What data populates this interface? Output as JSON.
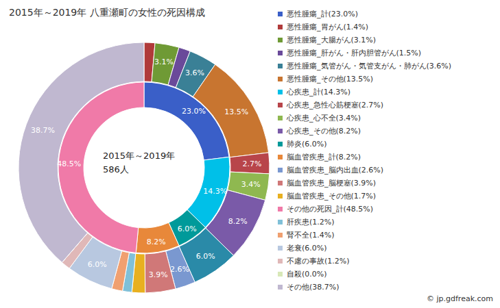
{
  "chart_data": {
    "type": "pie",
    "title": "2015年～2019年 八重瀬町の女性の死因構成",
    "center_text": [
      "2015年～2019年",
      "586人"
    ],
    "credit": "© jp.gdfreak.com",
    "legend": "right",
    "data_labels": true,
    "inner": [
      {
        "label": "悪性腫瘍_計(23.0%)",
        "value": 23.0,
        "value_label": "23.0%",
        "color": "#3a5fc8",
        "children": [
          {
            "label": "悪性腫瘍_胃がん(1.4%)",
            "value": 1.4,
            "value_label": null,
            "color": "#b03a3a"
          },
          {
            "label": "悪性腫瘍_大腸がん(3.1%)",
            "value": 3.1,
            "value_label": "3.1%",
            "color": "#6f9a35"
          },
          {
            "label": "悪性腫瘍_肝がん・肝内胆管がん(1.5%)",
            "value": 1.5,
            "value_label": null,
            "color": "#6a4a9a"
          },
          {
            "label": "悪性腫瘍_気管がん・気管支がん・肺がん(3.6%)",
            "value": 3.6,
            "value_label": "3.6%",
            "color": "#3a8096"
          },
          {
            "label": "悪性腫瘍_その他(13.5%)",
            "value": 13.5,
            "value_label": "13.5%",
            "color": "#c87530"
          }
        ]
      },
      {
        "label": "心疾患_計(14.3%)",
        "value": 14.3,
        "value_label": "14.3%",
        "color": "#00c0e8",
        "children": [
          {
            "label": "心疾患_急性心筋梗塞(2.7%)",
            "value": 2.7,
            "value_label": "2.7%",
            "color": "#b8454a"
          },
          {
            "label": "心疾患_心不全(3.4%)",
            "value": 3.4,
            "value_label": "3.4%",
            "color": "#8fb850"
          },
          {
            "label": "心疾患_その他(8.2%)",
            "value": 8.2,
            "value_label": "8.2%",
            "color": "#7a5aa8"
          }
        ]
      },
      {
        "label": "肺炎(6.0%)",
        "value": 6.0,
        "value_label": "6.0%",
        "color": "#009a9a",
        "children": [
          {
            "label": "肺炎(6.0%)",
            "value": 6.0,
            "value_label": "6.0%",
            "color": "#2a8aa8"
          }
        ]
      },
      {
        "label": "脳血管疾患_計(8.2%)",
        "value": 8.2,
        "value_label": "8.2%",
        "color": "#e8883a",
        "children": [
          {
            "label": "脳血管疾患_脳内出血(2.6%)",
            "value": 2.6,
            "value_label": "2.6%",
            "color": "#7a98d0"
          },
          {
            "label": "脳血管疾患_脳梗塞(3.9%)",
            "value": 3.9,
            "value_label": "3.9%",
            "color": "#d07878"
          },
          {
            "label": "脳血管疾患_その他(1.7%)",
            "value": 1.7,
            "value_label": null,
            "color": "#e8b020"
          }
        ]
      },
      {
        "label": "その他の死因_計(48.5%)",
        "value": 48.5,
        "value_label": "48.5%",
        "color": "#f07aa8",
        "children": [
          {
            "label": "肝疾患(1.2%)",
            "value": 1.2,
            "value_label": null,
            "color": "#80c0d8"
          },
          {
            "label": "腎不全(1.4%)",
            "value": 1.4,
            "value_label": null,
            "color": "#f0a070"
          },
          {
            "label": "老衰(6.0%)",
            "value": 6.0,
            "value_label": "6.0%",
            "color": "#b8c8e0"
          },
          {
            "label": "不慮の事故(1.2%)",
            "value": 1.2,
            "value_label": null,
            "color": "#e0b8b8"
          },
          {
            "label": "自殺(0.0%)",
            "value": 0.0,
            "value_label": null,
            "color": "#d8e8b8"
          },
          {
            "label": "その他(38.7%)",
            "value": 38.7,
            "value_label": "38.7%",
            "color": "#c0b8d0"
          }
        ]
      }
    ]
  }
}
